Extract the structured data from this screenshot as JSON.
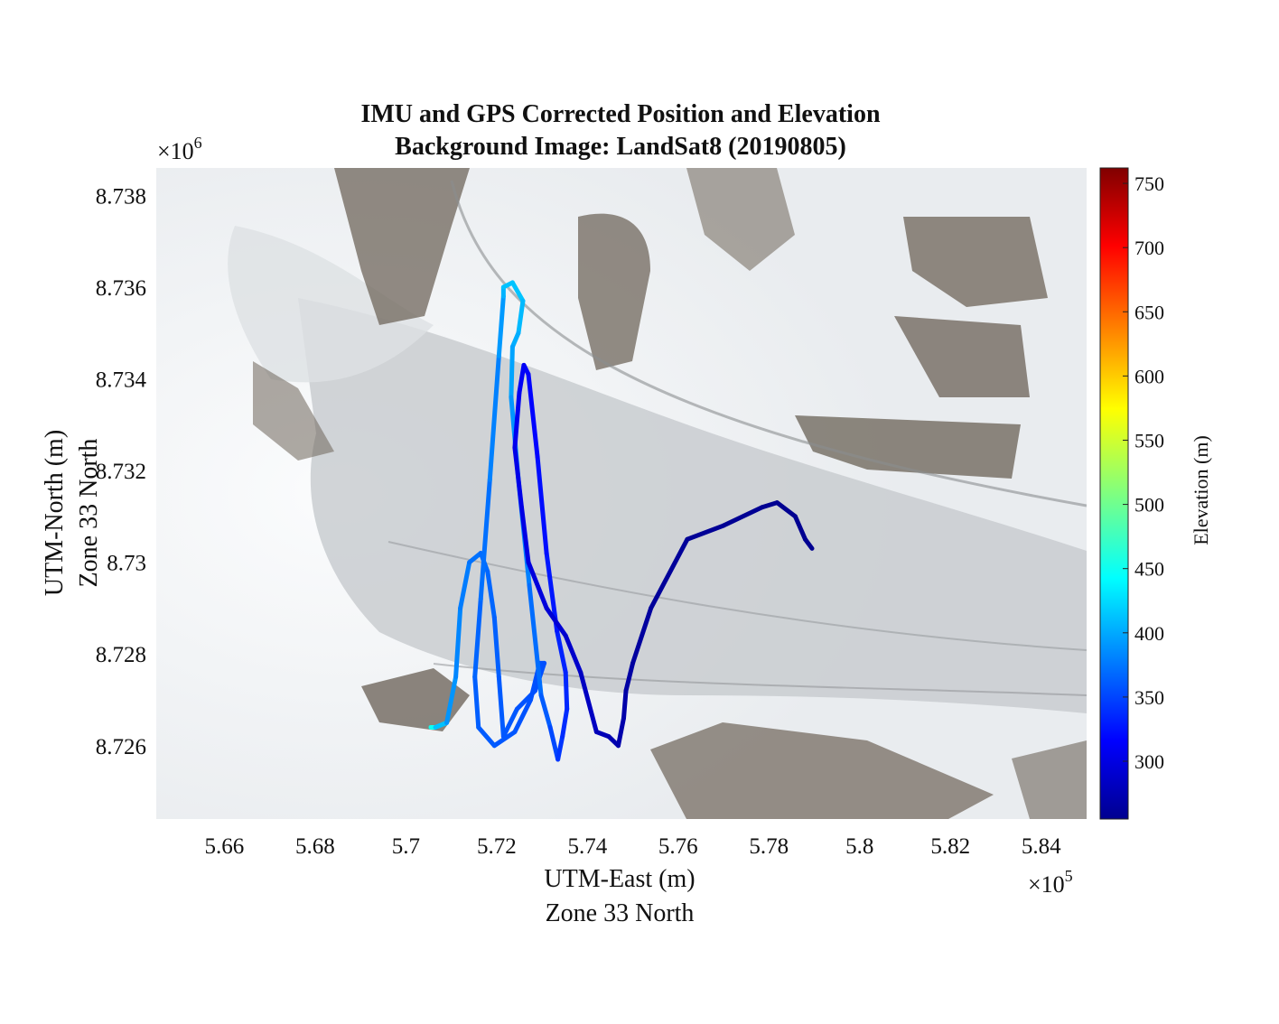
{
  "title": [
    "IMU and GPS Corrected Position and Elevation",
    "Background Image: LandSat8 (20190805)"
  ],
  "xlabel": [
    "UTM-East (m)",
    "Zone 33 North"
  ],
  "ylabel": [
    "UTM-North (m)",
    "Zone 33 North"
  ],
  "x_exponent": {
    "base": "×10",
    "power": "5"
  },
  "y_exponent": {
    "base": "×10",
    "power": "6"
  },
  "colorbar": {
    "label": "Elevation (m)",
    "range": [
      255,
      762
    ],
    "ticks": [
      300,
      350,
      400,
      450,
      500,
      550,
      600,
      650,
      700,
      750
    ],
    "tick_labels": [
      "300",
      "350",
      "400",
      "450",
      "500",
      "550",
      "600",
      "650",
      "700",
      "750"
    ],
    "colormap": "jet",
    "colormap_stops": [
      "#00008f",
      "#0000ff",
      "#00ffff",
      "#ffff00",
      "#ff0000",
      "#800000"
    ]
  },
  "background": {
    "description_colors": {
      "snow": "#f1f3f5",
      "glacier": "#cfd3d6",
      "rock": "#6e655a"
    }
  },
  "chart_data": {
    "type": "scatter",
    "xlim": [
      5.645,
      5.85
    ],
    "ylim": [
      8.7244,
      8.7386
    ],
    "xticks": [
      5.66,
      5.68,
      5.7,
      5.72,
      5.74,
      5.76,
      5.78,
      5.8,
      5.82,
      5.84
    ],
    "xtick_labels": [
      "5.66",
      "5.68",
      "5.7",
      "5.72",
      "5.74",
      "5.76",
      "5.78",
      "5.8",
      "5.82",
      "5.84"
    ],
    "yticks": [
      8.726,
      8.728,
      8.73,
      8.732,
      8.734,
      8.736,
      8.738
    ],
    "ytick_labels": [
      "8.726",
      "8.728",
      "8.73",
      "8.732",
      "8.734",
      "8.736",
      "8.738"
    ],
    "grid": false,
    "series": [
      {
        "track": [
          [
            5.7055,
            8.7264,
            470
          ],
          [
            5.7065,
            8.7264,
            430
          ],
          [
            5.709,
            8.7265,
            395
          ],
          [
            5.711,
            8.7275,
            385
          ],
          [
            5.712,
            8.729,
            380
          ],
          [
            5.714,
            8.73,
            375
          ],
          [
            5.7165,
            8.7302,
            370
          ],
          [
            5.718,
            8.7298,
            368
          ],
          [
            5.7195,
            8.7288,
            365
          ],
          [
            5.7205,
            8.7275,
            362
          ],
          [
            5.7215,
            8.7262,
            360
          ],
          [
            5.7245,
            8.7268,
            358
          ],
          [
            5.7285,
            8.7272,
            356
          ],
          [
            5.7305,
            8.7278,
            355
          ],
          [
            5.7295,
            8.7278,
            355
          ],
          [
            5.7275,
            8.727,
            356
          ],
          [
            5.724,
            8.7263,
            358
          ],
          [
            5.7195,
            8.726,
            360
          ],
          [
            5.716,
            8.7264,
            362
          ],
          [
            5.7152,
            8.7275,
            364
          ],
          [
            5.7165,
            8.7292,
            368
          ],
          [
            5.7185,
            8.7318,
            375
          ],
          [
            5.7205,
            8.7345,
            385
          ],
          [
            5.7215,
            8.7358,
            400
          ],
          [
            5.7215,
            8.736,
            410
          ],
          [
            5.7235,
            8.7361,
            415
          ],
          [
            5.7258,
            8.7357,
            412
          ],
          [
            5.7248,
            8.735,
            405
          ],
          [
            5.7235,
            8.7347,
            400
          ],
          [
            5.7232,
            8.7336,
            395
          ],
          [
            5.7248,
            8.7318,
            385
          ],
          [
            5.7272,
            8.7295,
            375
          ],
          [
            5.7298,
            8.7271,
            365
          ],
          [
            5.7318,
            8.7264,
            358
          ],
          [
            5.7335,
            8.7257,
            345
          ],
          [
            5.7345,
            8.7262,
            340
          ],
          [
            5.7355,
            8.7268,
            335
          ],
          [
            5.7352,
            8.7276,
            335
          ],
          [
            5.7333,
            8.7285,
            330
          ],
          [
            5.731,
            8.7302,
            325
          ],
          [
            5.729,
            8.7323,
            320
          ],
          [
            5.727,
            8.7341,
            315
          ],
          [
            5.726,
            8.7343,
            312
          ],
          [
            5.725,
            8.7337,
            310
          ],
          [
            5.724,
            8.7325,
            305
          ],
          [
            5.7255,
            8.7312,
            302
          ],
          [
            5.727,
            8.73,
            300
          ],
          [
            5.731,
            8.729,
            295
          ],
          [
            5.7352,
            8.7284,
            290
          ],
          [
            5.7385,
            8.7276,
            285
          ],
          [
            5.742,
            8.7263,
            280
          ],
          [
            5.7447,
            8.7262,
            275
          ],
          [
            5.7468,
            8.726,
            272
          ],
          [
            5.748,
            8.7266,
            270
          ],
          [
            5.7485,
            8.7272,
            268
          ],
          [
            5.75,
            8.7278,
            265
          ],
          [
            5.754,
            8.729,
            262
          ],
          [
            5.762,
            8.7305,
            260
          ],
          [
            5.77,
            8.7308,
            258
          ],
          [
            5.7785,
            8.7312,
            257
          ],
          [
            5.7818,
            8.7313,
            256
          ],
          [
            5.7858,
            8.731,
            256
          ],
          [
            5.788,
            8.7305,
            256
          ],
          [
            5.7895,
            8.7303,
            256
          ]
        ]
      }
    ],
    "note_points_units": "x in ×10^5 m, y in ×10^6 m, z elevation m"
  }
}
